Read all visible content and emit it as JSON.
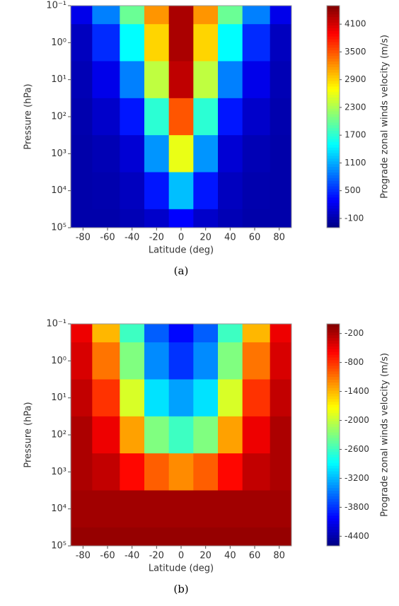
{
  "chart_data": [
    {
      "type": "heatmap",
      "caption": "(a)",
      "x_label": "Latitude (deg)",
      "y_label": "Pressure (hPa)",
      "xlim": [
        -90,
        90
      ],
      "xticks": [
        -80,
        -60,
        -40,
        -20,
        0,
        20,
        40,
        60,
        80
      ],
      "ylim": [
        0.1,
        100000
      ],
      "y_log": true,
      "y_inverted": true,
      "yticks": [
        {
          "value": 0.1,
          "label": "10⁻¹"
        },
        {
          "value": 1,
          "label": "10⁰"
        },
        {
          "value": 10,
          "label": "10¹"
        },
        {
          "value": 100,
          "label": "10²"
        },
        {
          "value": 1000,
          "label": "10³"
        },
        {
          "value": 10000,
          "label": "10⁴"
        },
        {
          "value": 100000,
          "label": "10⁵"
        }
      ],
      "colormap": "jet",
      "colorbar": {
        "label": "Prograde zonal winds velocity (m/s)",
        "lim": [
          -300,
          4500
        ],
        "ticks": [
          -100,
          500,
          1100,
          1700,
          2300,
          2900,
          3500,
          4100
        ]
      },
      "field": {
        "lat": [
          -85,
          -60,
          -40,
          -20,
          0,
          20,
          40,
          60,
          85
        ],
        "pressure": [
          0.1,
          1,
          10,
          100,
          1000,
          10000,
          100000
        ],
        "values": [
          [
            200,
            900,
            2000,
            3200,
            4300,
            3200,
            2000,
            900,
            200
          ],
          [
            0,
            500,
            1500,
            2900,
            4300,
            2900,
            1500,
            500,
            0
          ],
          [
            -50,
            200,
            900,
            2400,
            4200,
            2400,
            900,
            200,
            -50
          ],
          [
            -80,
            50,
            400,
            1700,
            3500,
            1700,
            400,
            50,
            -80
          ],
          [
            -100,
            -50,
            100,
            1000,
            2600,
            1000,
            100,
            -50,
            -100
          ],
          [
            -100,
            -80,
            0,
            400,
            1200,
            400,
            0,
            -80,
            -100
          ],
          [
            -100,
            -100,
            -50,
            50,
            300,
            50,
            -50,
            -100,
            -100
          ]
        ]
      }
    },
    {
      "type": "heatmap",
      "caption": "(b)",
      "x_label": "Latitude (deg)",
      "y_label": "Pressure (hPa)",
      "xlim": [
        -90,
        90
      ],
      "xticks": [
        -80,
        -60,
        -40,
        -20,
        0,
        20,
        40,
        60,
        80
      ],
      "ylim": [
        0.1,
        100000
      ],
      "y_log": true,
      "y_inverted": true,
      "yticks": [
        {
          "value": 0.1,
          "label": "10⁻¹"
        },
        {
          "value": 1,
          "label": "10⁰"
        },
        {
          "value": 10,
          "label": "10¹"
        },
        {
          "value": 100,
          "label": "10²"
        },
        {
          "value": 1000,
          "label": "10³"
        },
        {
          "value": 10000,
          "label": "10⁴"
        },
        {
          "value": 100000,
          "label": "10⁵"
        }
      ],
      "colormap": "jet",
      "colorbar": {
        "label": "Prograde zonal winds velocity (m/s)",
        "lim": [
          -4600,
          0
        ],
        "ticks": [
          -4400,
          -3800,
          -3200,
          -2600,
          -2000,
          -1400,
          -800,
          -200
        ]
      },
      "field": {
        "lat": [
          -85,
          -60,
          -40,
          -20,
          0,
          20,
          40,
          60,
          85
        ],
        "pressure": [
          0.1,
          1,
          10,
          100,
          1000,
          10000,
          100000
        ],
        "values": [
          [
            -500,
            -1400,
            -2600,
            -3600,
            -4000,
            -3600,
            -2600,
            -1400,
            -500
          ],
          [
            -400,
            -1100,
            -2300,
            -3400,
            -3800,
            -3400,
            -2300,
            -1100,
            -400
          ],
          [
            -300,
            -800,
            -1900,
            -3000,
            -3300,
            -3000,
            -1900,
            -800,
            -300
          ],
          [
            -200,
            -500,
            -1300,
            -2300,
            -2600,
            -2300,
            -1300,
            -500,
            -200
          ],
          [
            -200,
            -300,
            -600,
            -1000,
            -1200,
            -1000,
            -600,
            -300,
            -200
          ],
          [
            -150,
            -150,
            -150,
            -150,
            -150,
            -150,
            -150,
            -150,
            -150
          ],
          [
            -100,
            -100,
            -100,
            -100,
            -100,
            -100,
            -100,
            -100,
            -100
          ]
        ]
      }
    }
  ]
}
